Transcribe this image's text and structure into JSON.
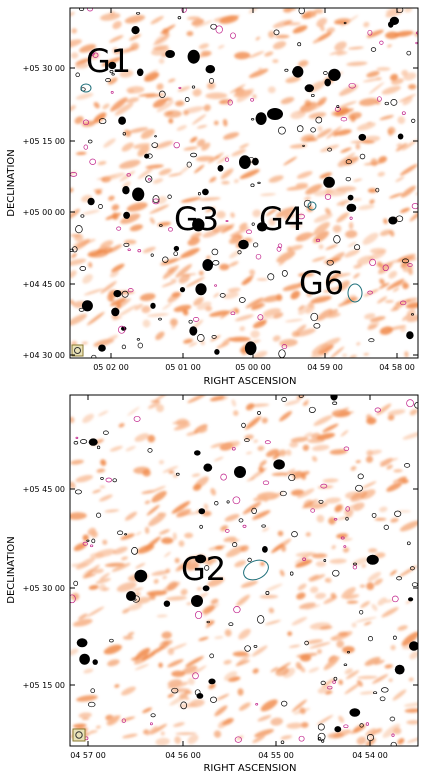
{
  "palette": {
    "radio_emission": "#f08a4b",
    "radio_emission_light": "#f7b48a",
    "contour_black": "#000000",
    "contour_magenta": "#c0208a",
    "contour_cyan": "#1e6f7a",
    "beam_box": "#b8a24a",
    "frame": "#000000"
  },
  "top_panel": {
    "xlabel": "RIGHT ASCENSION",
    "ylabel": "DECLINATION",
    "x_ticks": [
      "05 02 00",
      "05 01 00",
      "05 00 00",
      "04 59 00",
      "04 58 00"
    ],
    "y_ticks": [
      "+05 30 00",
      "+05 15 00",
      "+05 00 00",
      "+04 45 00",
      "+04 30 00"
    ],
    "sources": [
      "G1",
      "G3",
      "G4",
      "G6"
    ]
  },
  "bottom_panel": {
    "xlabel": "RIGHT ASCENSION",
    "ylabel": "DECLINATION",
    "x_ticks": [
      "04 57 00",
      "04 56 00",
      "04 55 00",
      "04 54 00"
    ],
    "y_ticks": [
      "+05 45 00",
      "+05 30 00",
      "+05 15 00"
    ],
    "sources": [
      "G2"
    ]
  }
}
